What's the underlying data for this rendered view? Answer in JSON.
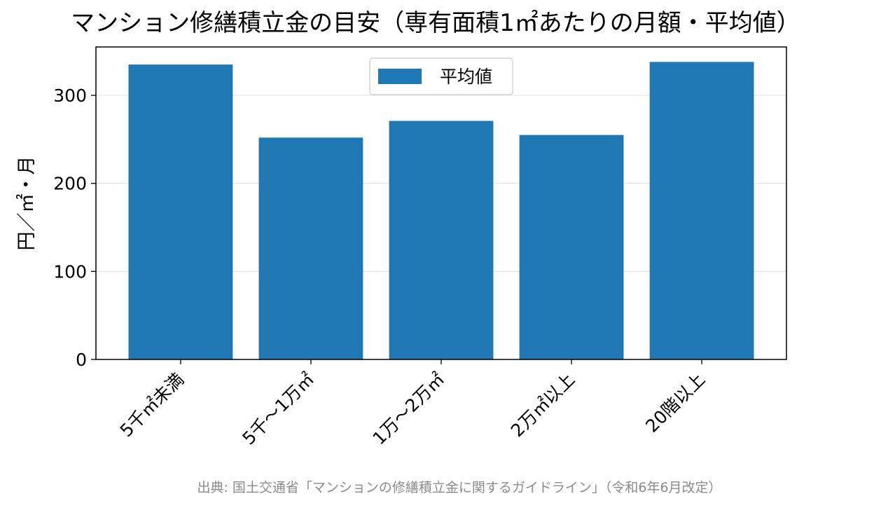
{
  "chart_data": {
    "type": "bar",
    "title": "マンション修繕積立金の目安（専有面積1㎡あたりの月額・平均値）",
    "xlabel": "",
    "ylabel": "円／㎡・月",
    "categories": [
      "5千㎡未満",
      "5千〜1万㎡",
      "1万〜2万㎡",
      "2万㎡以上",
      "20階以上"
    ],
    "series": [
      {
        "name": "平均値",
        "values": [
          335,
          252,
          271,
          255,
          338
        ],
        "color": "#1f77b4"
      }
    ],
    "ylim": [
      0,
      355
    ],
    "yticks": [
      0,
      100,
      200,
      300
    ],
    "grid": "y",
    "legend": "top-center",
    "source": "出典: 国土交通省「マンションの修繕積立金に関するガイドライン」（令和6年6月改定）"
  }
}
